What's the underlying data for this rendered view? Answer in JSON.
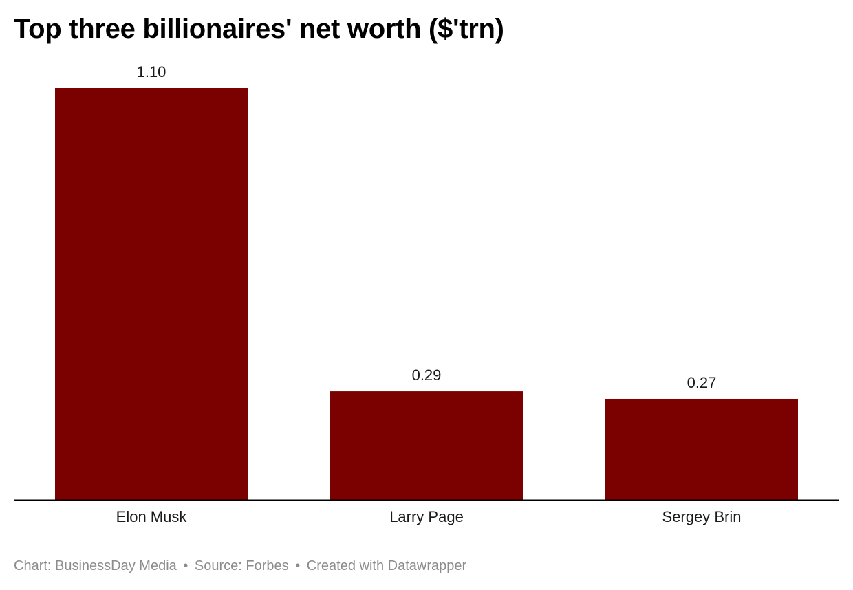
{
  "title": "Top three billionaires' net worth ($'trn)",
  "footer": {
    "chart_credit": "Chart: BusinessDay Media",
    "source": "Source: Forbes",
    "tool": "Created with Datawrapper",
    "separator": "•"
  },
  "colors": {
    "bar": "#7b0000",
    "axis": "#000000",
    "label": "#1a1a1a",
    "footer": "#8c8c8c"
  },
  "chart_data": {
    "type": "bar",
    "title": "Top three billionaires' net worth ($'trn)",
    "categories": [
      "Elon Musk",
      "Larry Page",
      "Sergey Brin"
    ],
    "values": [
      1.1,
      0.29,
      0.27
    ],
    "value_labels": [
      "1.10",
      "0.29",
      "0.27"
    ],
    "xlabel": "",
    "ylabel": "",
    "ylim": [
      0,
      1.1
    ],
    "grid": false,
    "legend": "none"
  }
}
